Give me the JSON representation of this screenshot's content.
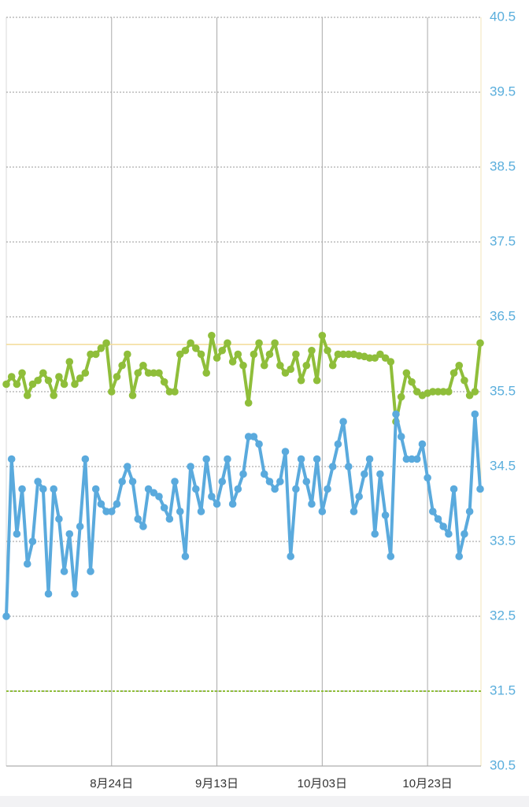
{
  "chart_data": {
    "type": "line",
    "categories": [
      null,
      null,
      null,
      null,
      null,
      null,
      null,
      null,
      null,
      null,
      null,
      null,
      null,
      null,
      null,
      null,
      null,
      null,
      null,
      null,
      "8月24日",
      null,
      null,
      null,
      null,
      null,
      null,
      null,
      null,
      null,
      null,
      null,
      null,
      null,
      null,
      null,
      null,
      null,
      null,
      null,
      "9月13日",
      null,
      null,
      null,
      null,
      null,
      null,
      null,
      null,
      null,
      null,
      null,
      null,
      null,
      null,
      null,
      null,
      null,
      null,
      null,
      "10月03日",
      null,
      null,
      null,
      null,
      null,
      null,
      null,
      null,
      null,
      null,
      null,
      null,
      null,
      null,
      null,
      null,
      null,
      null,
      null,
      "10月23日",
      null,
      null,
      null,
      null,
      null,
      null,
      null,
      null,
      null,
      null
    ],
    "series": [
      {
        "color": "#8fbe3a",
        "values": [
          35.6,
          35.7,
          35.6,
          35.75,
          35.45,
          35.6,
          35.65,
          35.75,
          35.65,
          35.45,
          35.7,
          35.6,
          35.9,
          35.6,
          35.68,
          35.75,
          36.0,
          36.0,
          36.08,
          36.15,
          35.5,
          35.7,
          35.85,
          36.0,
          35.45,
          35.75,
          35.85,
          35.75,
          35.75,
          35.75,
          35.63,
          35.5,
          35.5,
          36.0,
          36.05,
          36.15,
          36.08,
          36.0,
          35.75,
          36.25,
          35.95,
          36.05,
          36.15,
          35.9,
          36.0,
          35.85,
          35.35,
          36.0,
          36.15,
          35.85,
          36.0,
          36.15,
          35.85,
          35.75,
          35.8,
          36.0,
          35.65,
          35.85,
          36.05,
          35.65,
          36.25,
          36.05,
          35.85,
          36.0,
          36.0,
          36.0,
          36.0,
          35.98,
          35.97,
          35.95,
          35.95,
          36.0,
          35.95,
          35.9,
          35.1,
          35.43,
          35.75,
          35.63,
          35.5,
          35.45,
          35.48,
          35.5,
          35.5,
          35.5,
          35.5,
          35.75,
          35.85,
          35.65,
          35.45,
          35.5,
          36.15
        ]
      },
      {
        "color": "#5aaadd",
        "values": [
          32.5,
          34.6,
          33.6,
          34.2,
          33.2,
          33.5,
          34.3,
          34.2,
          32.8,
          34.2,
          33.8,
          33.1,
          33.6,
          32.8,
          33.7,
          34.6,
          33.1,
          34.2,
          34.0,
          33.9,
          33.9,
          34.0,
          34.3,
          34.5,
          34.3,
          33.8,
          33.7,
          34.2,
          34.15,
          34.1,
          33.95,
          33.8,
          34.3,
          33.9,
          33.3,
          34.5,
          34.2,
          33.9,
          34.6,
          34.1,
          34.0,
          34.3,
          34.6,
          34.0,
          34.2,
          34.4,
          34.9,
          34.9,
          34.8,
          34.4,
          34.3,
          34.2,
          34.3,
          34.7,
          33.3,
          34.2,
          34.6,
          34.3,
          34.0,
          34.6,
          33.9,
          34.2,
          34.5,
          34.8,
          35.1,
          34.5,
          33.9,
          34.1,
          34.4,
          34.6,
          33.6,
          34.4,
          33.85,
          33.3,
          35.2,
          34.9,
          34.6,
          34.6,
          34.6,
          34.8,
          34.35,
          33.9,
          33.8,
          33.7,
          33.6,
          34.2,
          33.3,
          33.6,
          33.9,
          35.2,
          34.2
        ]
      }
    ],
    "ylim": [
      30.5,
      40.5
    ],
    "yticks": [
      30.5,
      31.5,
      32.5,
      33.5,
      34.5,
      35.5,
      36.5,
      37.5,
      38.5,
      39.5,
      40.5
    ],
    "grid": true,
    "reference_lines": [
      {
        "value": 36.13,
        "color": "#f3dc98"
      },
      {
        "value": 31.5,
        "color": "#8fbe3a"
      }
    ]
  }
}
